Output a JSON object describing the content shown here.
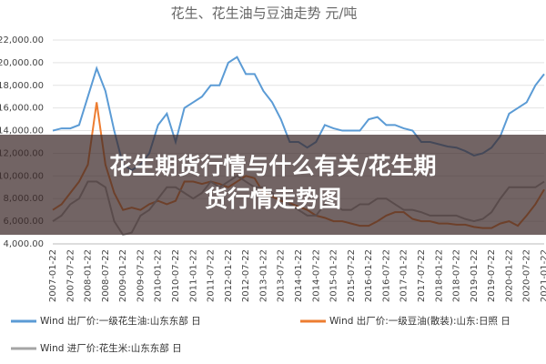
{
  "chart_data": {
    "type": "line",
    "title": "花生、花生油与豆油走势  元/吨",
    "categories": [
      "2007-01-22",
      null,
      "2007-07-22",
      null,
      "2008-01-22",
      null,
      "2008-07-22",
      null,
      "2009-01-22",
      null,
      "2009-07-22",
      null,
      "2010-01-22",
      null,
      "2010-07-22",
      null,
      "2011-01-22",
      null,
      "2011-07-22",
      null,
      "2012-01-22",
      null,
      "2012-07-22",
      null,
      "2013-01-22",
      null,
      "2013-07-22",
      null,
      "2014-01-22",
      null,
      "2014-07-22",
      null,
      "2015-01-22",
      null,
      "2015-07-22",
      null,
      "2016-01-22",
      null,
      "2016-07-22",
      null,
      "2017-01-22",
      null,
      "2017-07-22",
      null,
      "2018-01-22",
      null,
      "2018-07-22",
      null,
      "2019-01-22",
      null,
      "2019-07-22",
      null,
      "2020-01-22",
      null,
      "2020-07-22",
      null,
      "2021-01-22"
    ],
    "series": [
      {
        "name": "Wind 出厂价:一级花生油:山东东部 日",
        "color": "#5b9bd5",
        "values": [
          14000,
          14200,
          14200,
          14500,
          17000,
          19500,
          17500,
          14000,
          11000,
          10500,
          11000,
          12000,
          14500,
          15500,
          13000,
          16000,
          16500,
          17000,
          18000,
          18000,
          20000,
          20500,
          19000,
          19000,
          17500,
          16500,
          15000,
          13000,
          13000,
          12500,
          13000,
          14500,
          14200,
          14000,
          14000,
          14000,
          15000,
          15200,
          14500,
          14500,
          14200,
          14000,
          13000,
          13000,
          12800,
          12600,
          12500,
          12200,
          11800,
          12000,
          12500,
          13500,
          15500,
          16000,
          16500,
          18000,
          19000
        ]
      },
      {
        "name": "Wind 出厂价:一级豆油(散装):山东:日照 日",
        "color": "#ed7d31",
        "values": [
          7000,
          7500,
          8500,
          9500,
          11000,
          16500,
          11000,
          8500,
          7000,
          7200,
          7000,
          7500,
          7800,
          7500,
          7800,
          9500,
          9500,
          9300,
          9500,
          9300,
          9000,
          9500,
          10000,
          9800,
          8500,
          8200,
          7800,
          7600,
          7300,
          7000,
          6500,
          6300,
          6000,
          6000,
          5800,
          5600,
          5600,
          6000,
          6500,
          6800,
          6800,
          6200,
          6000,
          6000,
          5800,
          5800,
          5700,
          5700,
          5500,
          5400,
          5400,
          5800,
          6000,
          5600,
          6500,
          7500,
          8800
        ]
      },
      {
        "name": "Wind 进厂价:花生米:山东东部 日",
        "color": "#a5a5a5",
        "values": [
          6000,
          6500,
          7500,
          8000,
          9500,
          9500,
          9000,
          6000,
          4800,
          5000,
          6500,
          7000,
          8000,
          9000,
          9000,
          8500,
          8000,
          8500,
          9500,
          9000,
          9500,
          10000,
          9500,
          9000,
          9000,
          8500,
          8000,
          7500,
          7000,
          6500,
          6500,
          7500,
          7500,
          7000,
          7000,
          7500,
          7500,
          8000,
          8000,
          7500,
          7000,
          7000,
          6800,
          6500,
          6500,
          6500,
          6500,
          6200,
          6000,
          6200,
          6800,
          8000,
          9000,
          9000,
          9000,
          9000,
          9500
        ]
      }
    ],
    "ylim": [
      4000,
      22000
    ],
    "yticks": [
      {
        "value": 4000,
        "label": "4,000.00"
      },
      {
        "value": 6000,
        "label": "6,000.00"
      },
      {
        "value": 8000,
        "label": "8,000.00"
      },
      {
        "value": 10000,
        "label": "10,000.00"
      },
      {
        "value": 12000,
        "label": "12,000.00"
      },
      {
        "value": 14000,
        "label": "14,000.00"
      },
      {
        "value": 16000,
        "label": "16,000.00"
      },
      {
        "value": 18000,
        "label": "18,000.00"
      },
      {
        "value": 20000,
        "label": "20,000.00"
      },
      {
        "value": 22000,
        "label": "22,000.00"
      }
    ],
    "grid": true
  },
  "banner": {
    "lines": [
      "花生期货行情与什么有关/花生期",
      "货行情走势图"
    ]
  }
}
